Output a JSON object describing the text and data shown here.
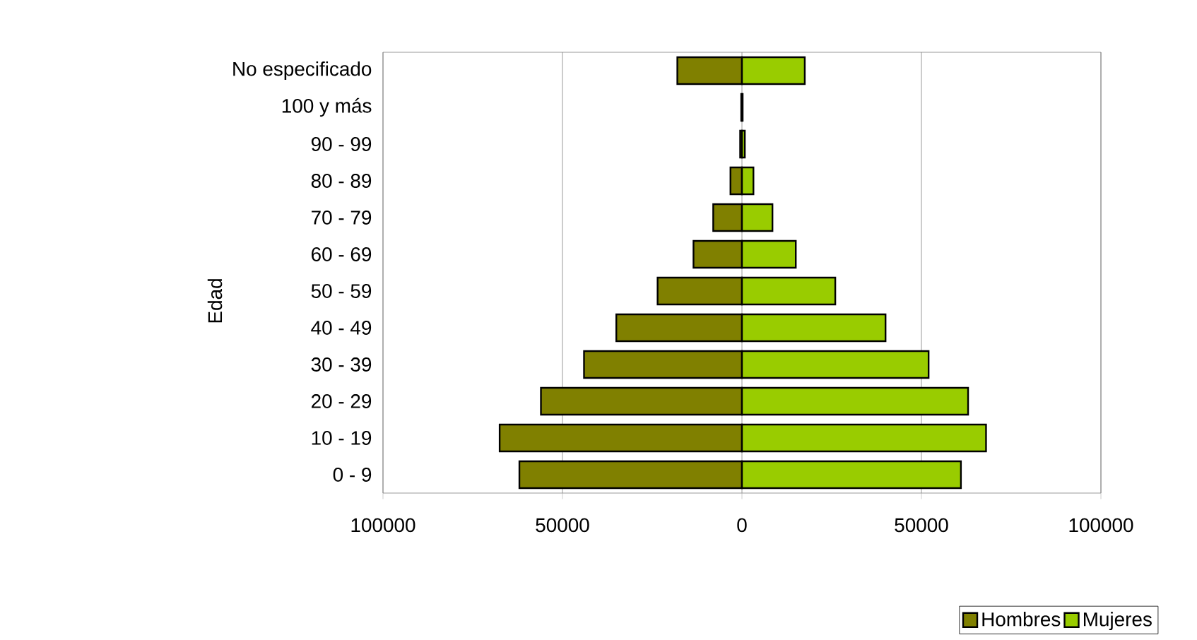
{
  "chart_data": {
    "type": "bar",
    "orientation": "horizontal",
    "ylabel": "Edad",
    "categories": [
      "No especificado",
      "100 y más",
      "90 - 99",
      "80 - 89",
      "70 - 79",
      "60 - 69",
      "50 - 59",
      "40 - 49",
      "30 - 39",
      "20 - 29",
      "10 - 19",
      "0 - 9"
    ],
    "series": [
      {
        "name": "Hombres",
        "color": "#808000",
        "values": [
          -18000,
          -200,
          -500,
          -3200,
          -8000,
          -13500,
          -23500,
          -35000,
          -44000,
          -56000,
          -67500,
          -62000
        ]
      },
      {
        "name": "Mujeres",
        "color": "#99cc00",
        "values": [
          17500,
          200,
          800,
          3200,
          8500,
          15000,
          26000,
          40000,
          52000,
          63000,
          68000,
          61000
        ]
      }
    ],
    "xlim": [
      -100000,
      100000
    ],
    "xticks": [
      {
        "value": -100000,
        "label": "100000"
      },
      {
        "value": -50000,
        "label": "50000"
      },
      0,
      50000,
      100000
    ],
    "grid": "x",
    "legend": "bottom right",
    "stacked": true
  }
}
